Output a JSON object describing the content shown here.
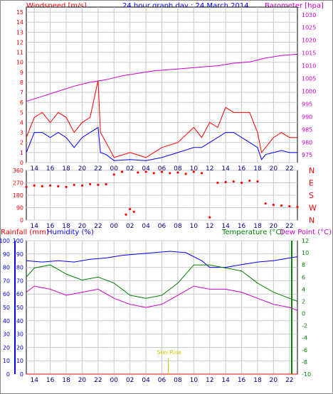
{
  "header": {
    "left_label": "Windspeed [m/s]",
    "title": "24 hour graph day : 24 March 2014",
    "right_label": "Barometer [hpa]"
  },
  "bottom_header": {
    "rainfall_label": "Rainfall (mm)",
    "humidity_label": "Humidity (%)",
    "temperature_label": "Temperature (°C)",
    "dewpoint_label": "Dew Point (°C)"
  },
  "sunrise_label": "Sun Rise",
  "colors": {
    "wind": "#ff0000",
    "gust": "#ff0000",
    "avg": "#0000ff",
    "baro": "#cc00cc",
    "rain": "#ff0000",
    "humidity": "#0000ff",
    "temperature": "#008000",
    "dewpoint": "#cc00cc",
    "sunrise": "#cccc00",
    "grid": "#c8c8c8"
  },
  "chart_data": [
    {
      "type": "line",
      "name": "wind-barometer",
      "x_ticks": [
        "14",
        "16",
        "18",
        "20",
        "22",
        "00",
        "02",
        "04",
        "06",
        "08",
        "10",
        "12",
        "14",
        "16",
        "18",
        "20",
        "22",
        "00"
      ],
      "y_left_ticks": [
        0,
        1,
        2,
        3,
        4,
        5,
        6,
        7,
        8,
        9,
        10,
        11,
        12,
        13,
        14,
        15
      ],
      "y_right_ticks": [
        975,
        980,
        985,
        990,
        995,
        1000,
        1005,
        1010,
        1015,
        1020,
        1025,
        1030
      ],
      "ylim_left": [
        0,
        15.5
      ],
      "ylim_right": [
        972,
        1033
      ],
      "series": [
        {
          "name": "Windspeed",
          "axis": "left",
          "x": [
            13,
            14,
            15,
            16,
            17,
            18,
            19,
            20,
            21,
            22,
            22.3,
            23,
            24,
            26,
            28,
            30,
            32,
            34,
            35,
            36,
            37,
            38,
            39,
            40,
            41,
            42,
            42.5,
            43,
            44,
            45,
            46,
            47
          ],
          "values": [
            2.5,
            4.5,
            5.0,
            4.0,
            5.0,
            4.5,
            3.0,
            4.0,
            4.5,
            8.2,
            3.0,
            2.0,
            0.5,
            1.0,
            0.5,
            1.5,
            2.0,
            3.5,
            2.5,
            4.0,
            3.5,
            5.5,
            5.0,
            5.0,
            5.0,
            3.0,
            1.0,
            1.5,
            2.5,
            3.0,
            2.5,
            2.5
          ]
        },
        {
          "name": "Average",
          "axis": "left",
          "x": [
            13,
            14,
            15,
            16,
            17,
            18,
            19,
            20,
            21,
            22,
            22.3,
            23,
            24,
            26,
            28,
            30,
            32,
            34,
            35,
            36,
            37,
            38,
            39,
            40,
            41,
            42,
            42.5,
            43,
            44,
            45,
            46,
            47
          ],
          "values": [
            1.0,
            3.0,
            3.0,
            2.5,
            3.0,
            2.5,
            1.5,
            2.5,
            3.0,
            3.5,
            1.0,
            0.8,
            0.2,
            0.3,
            0.2,
            0.5,
            1.0,
            1.5,
            1.5,
            2.0,
            2.5,
            3.0,
            3.0,
            2.5,
            2.0,
            1.5,
            0.3,
            0.8,
            1.0,
            1.2,
            1.0,
            1.0
          ]
        },
        {
          "name": "Barometer",
          "axis": "right",
          "x": [
            13,
            15,
            17,
            19,
            21,
            23,
            25,
            27,
            29,
            31,
            33,
            35,
            37,
            39,
            41,
            43,
            45,
            47
          ],
          "values": [
            996,
            998,
            1000,
            1002,
            1003.5,
            1004.5,
            1006,
            1007,
            1008,
            1008.5,
            1009,
            1009.5,
            1010,
            1011,
            1011.5,
            1013,
            1014,
            1014.5
          ]
        }
      ]
    },
    {
      "type": "scatter",
      "name": "wind-direction",
      "x_ticks": [
        "14",
        "16",
        "18",
        "20",
        "22",
        "00",
        "02",
        "04",
        "06",
        "08",
        "10",
        "12",
        "14",
        "16",
        "18",
        "20",
        "22",
        "00"
      ],
      "y_left_ticks": [
        0,
        90,
        180,
        270,
        360
      ],
      "y_right_ticks": [
        "N",
        "W",
        "S",
        "E",
        "N"
      ],
      "ylim": [
        0,
        360
      ],
      "x": [
        13,
        14,
        15,
        16,
        17,
        18,
        19,
        20,
        21,
        22,
        23,
        24,
        25,
        25.5,
        26,
        26.5,
        27,
        28,
        29,
        30,
        31,
        32,
        33,
        34,
        35,
        36,
        37,
        38,
        39,
        40,
        41,
        42,
        43,
        44,
        45,
        46,
        47
      ],
      "values": [
        240,
        250,
        245,
        250,
        245,
        240,
        255,
        250,
        260,
        255,
        260,
        330,
        350,
        40,
        80,
        60,
        345,
        350,
        340,
        350,
        340,
        345,
        335,
        350,
        340,
        20,
        270,
        275,
        280,
        270,
        285,
        280,
        120,
        110,
        105,
        100,
        95
      ]
    },
    {
      "type": "line",
      "name": "rain-humidity-temperature",
      "x_ticks": [
        "14",
        "16",
        "18",
        "20",
        "22",
        "00",
        "02",
        "04",
        "06",
        "08",
        "10",
        "12",
        "14",
        "16",
        "18",
        "20",
        "22",
        "00"
      ],
      "y_left_ticks": [
        0,
        10,
        20,
        30,
        40,
        50,
        60,
        70,
        80,
        90,
        100
      ],
      "y_right_ticks": [
        -10,
        -8,
        -6,
        -4,
        -2,
        0,
        2,
        4,
        6,
        8,
        10,
        12
      ],
      "ylim_left": [
        0,
        100
      ],
      "ylim_right": [
        -10,
        12
      ],
      "series": [
        {
          "name": "Rainfall",
          "axis": "left",
          "x": [
            13,
            47
          ],
          "values": [
            0,
            0
          ]
        },
        {
          "name": "Humidity",
          "axis": "left",
          "x": [
            13,
            15,
            17,
            19,
            21,
            23,
            25,
            27,
            29,
            31,
            33,
            35,
            36,
            38,
            40,
            42,
            44,
            46,
            47
          ],
          "values": [
            85,
            84,
            85,
            84,
            86,
            87,
            89,
            90,
            91,
            92,
            91,
            85,
            80,
            80,
            82,
            84,
            85,
            87,
            88
          ]
        },
        {
          "name": "Temperature",
          "axis": "right",
          "x": [
            13,
            14,
            16,
            18,
            20,
            22,
            24,
            26,
            28,
            30,
            32,
            34,
            36,
            38,
            40,
            42,
            44,
            46,
            47
          ],
          "values": [
            6.0,
            7.5,
            8.0,
            6.5,
            5.5,
            6.0,
            5.0,
            3.0,
            2.5,
            3.0,
            5.0,
            8.0,
            8.0,
            7.5,
            7.0,
            5.0,
            3.5,
            2.5,
            2.0
          ]
        },
        {
          "name": "Dew Point",
          "axis": "right",
          "x": [
            13,
            14,
            16,
            18,
            20,
            22,
            24,
            26,
            28,
            30,
            32,
            34,
            36,
            38,
            40,
            42,
            44,
            46,
            47
          ],
          "values": [
            3.5,
            4.5,
            4.0,
            3.0,
            3.5,
            4.0,
            2.5,
            1.5,
            1.0,
            1.5,
            3.0,
            4.5,
            4.0,
            4.0,
            3.5,
            2.5,
            1.5,
            1.0,
            0.5
          ]
        }
      ],
      "annotations": [
        {
          "label": "Sun Rise",
          "x": 30.8
        }
      ]
    }
  ]
}
